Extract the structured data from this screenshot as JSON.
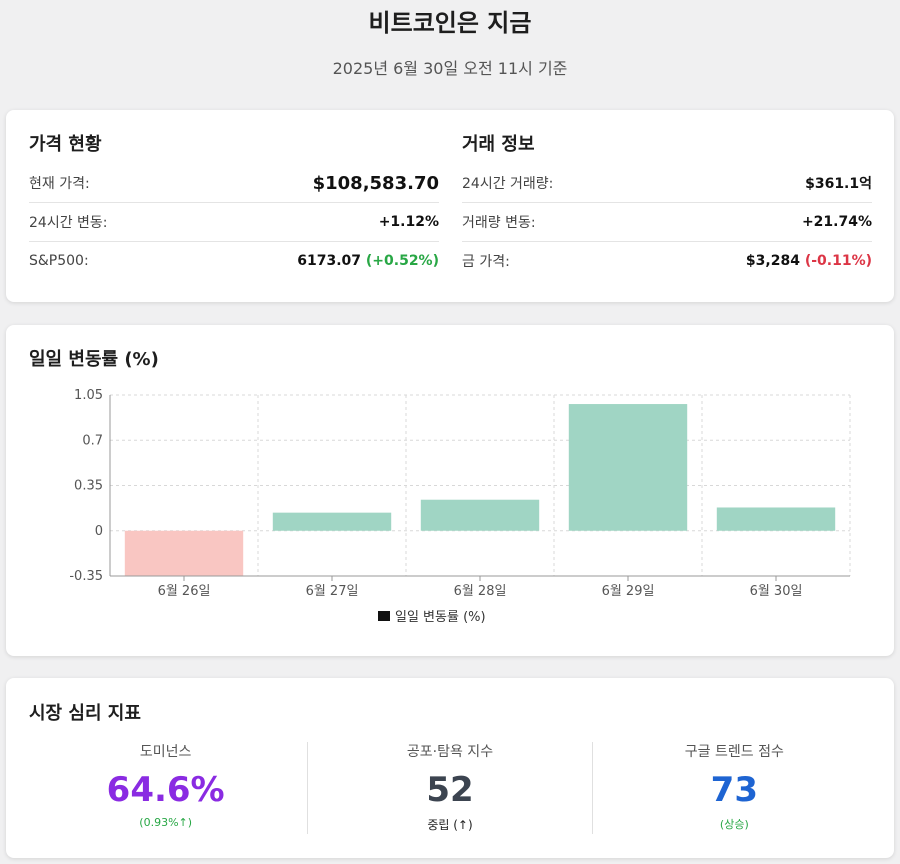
{
  "header": {
    "title": "비트코인은 지금",
    "subtitle": "2025년 6월 30일 오전 11시 기준"
  },
  "price": {
    "title": "가격 현황",
    "rows": [
      {
        "label": "현재 가격:",
        "value": "$108,583.70"
      },
      {
        "label": "24시간 변동:",
        "value": "+1.12%"
      },
      {
        "label": "S&P500:",
        "value": "6173.07",
        "change": "(+0.52%)"
      }
    ]
  },
  "trade": {
    "title": "거래 정보",
    "rows": [
      {
        "label": "24시간 거래량:",
        "value": "$361.1억"
      },
      {
        "label": "거래량 변동:",
        "value": "+21.74%"
      },
      {
        "label": "금 가격:",
        "value": "$3,284",
        "change": "(-0.11%)"
      }
    ]
  },
  "chart_data": {
    "type": "bar",
    "title": "일일 변동률 (%)",
    "categories": [
      "6월 26일",
      "6월 27일",
      "6월 28일",
      "6월 29일",
      "6월 30일"
    ],
    "series": [
      {
        "name": "일일 변동률 (%)",
        "values": [
          -0.35,
          0.14,
          0.24,
          0.98,
          0.18
        ]
      }
    ],
    "ylim": [
      -0.35,
      1.05
    ],
    "yticks": [
      "1.05",
      "0.7",
      "0.35",
      "0",
      "-0.35"
    ],
    "grid": true,
    "legend": "bottom",
    "colors": {
      "positive": "#a0d5c4",
      "negative": "#f9c6c2"
    }
  },
  "sentiment": {
    "title": "시장 심리 지표",
    "items": [
      {
        "label": "도미넌스",
        "value": "64.6%",
        "note": "(0.93%↑)"
      },
      {
        "label": "공포·탐욕 지수",
        "value": "52",
        "note": "중립 (↑)"
      },
      {
        "label": "구글 트렌드 점수",
        "value": "73",
        "note": "(상승)"
      }
    ]
  }
}
